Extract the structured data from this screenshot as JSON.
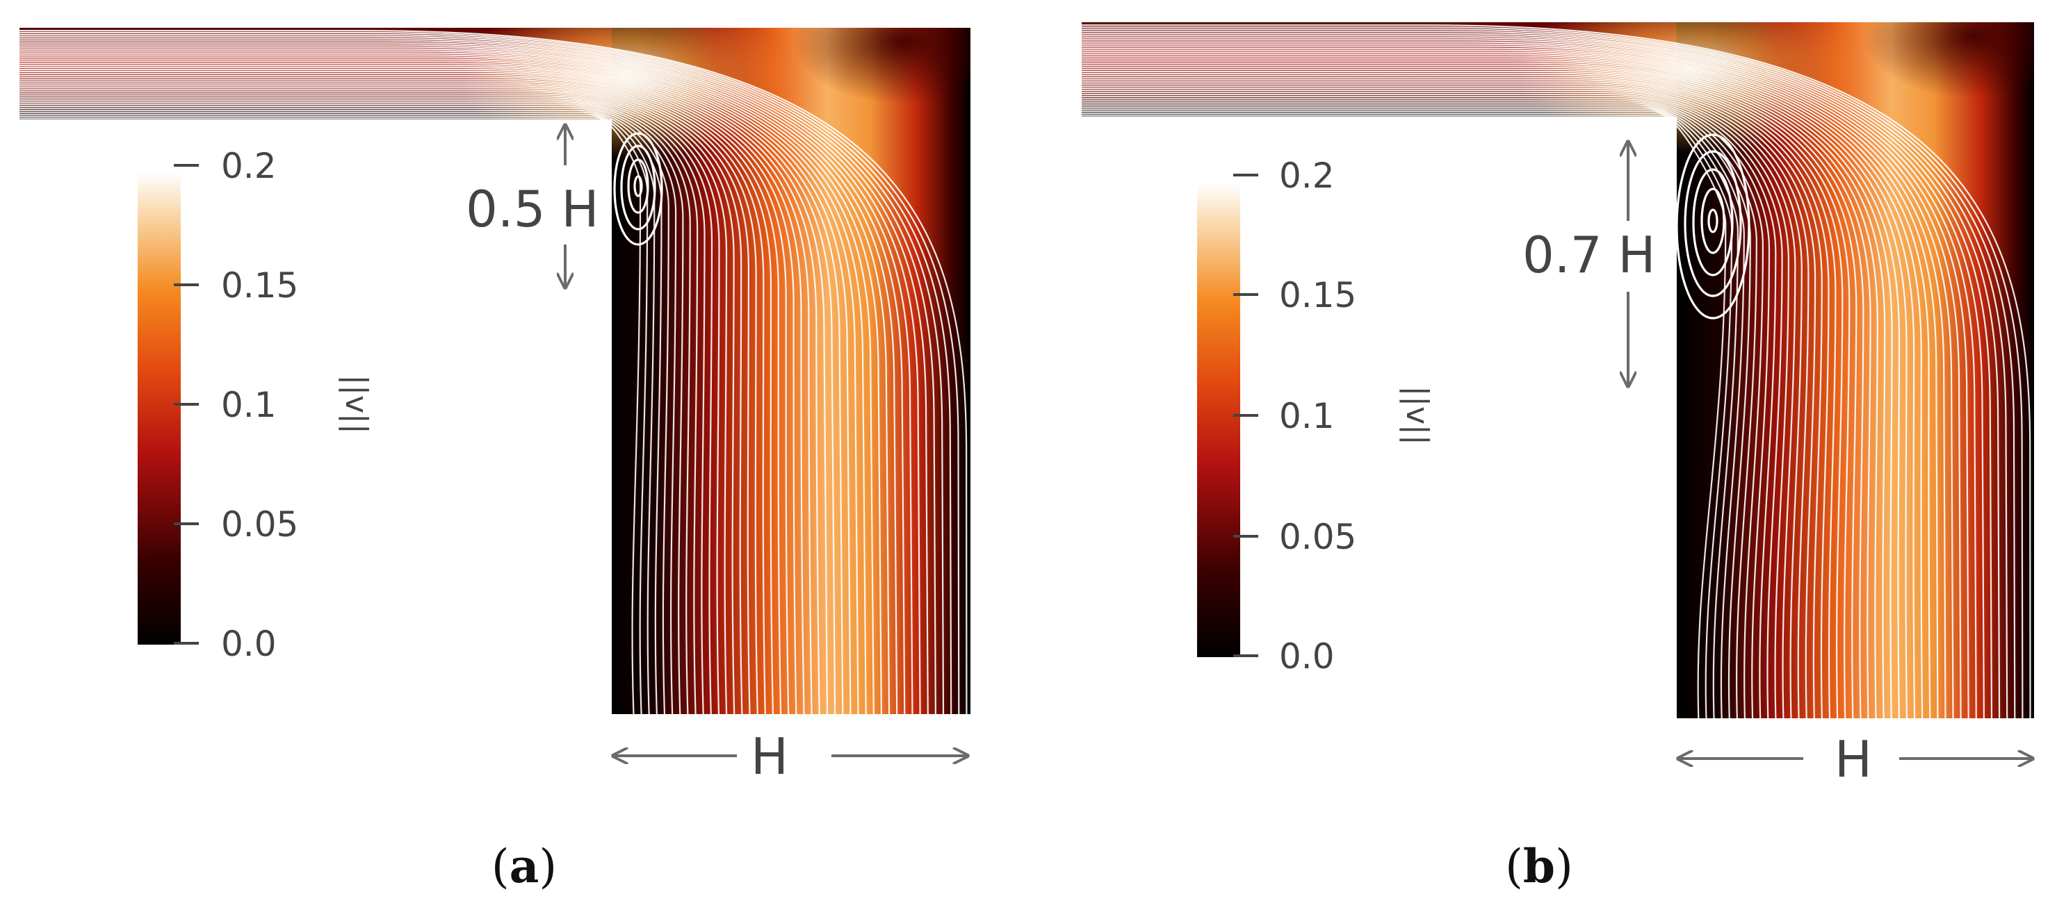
{
  "panels": [
    {
      "id": "a",
      "label": "a",
      "inlet_dim": "0.5 H",
      "width_dim": "H",
      "vortex_height_fraction": 0.5
    },
    {
      "id": "b",
      "label": "b",
      "inlet_dim": "0.7 H",
      "width_dim": "H",
      "vortex_height_fraction": 0.7
    }
  ],
  "colorbar": {
    "variable_symbol": "||v||",
    "ticks": [
      "0.2",
      "0.15",
      "0.1",
      "0.05",
      "0.0"
    ],
    "min": 0.0,
    "max": 0.2,
    "colormap": [
      "#000000",
      "#5a0000",
      "#b01010",
      "#e24a10",
      "#f58a20",
      "#f7c27a",
      "#ffffff"
    ]
  },
  "colors": {
    "arrow": "#6b6b6b",
    "streamline": "#ffffff"
  }
}
